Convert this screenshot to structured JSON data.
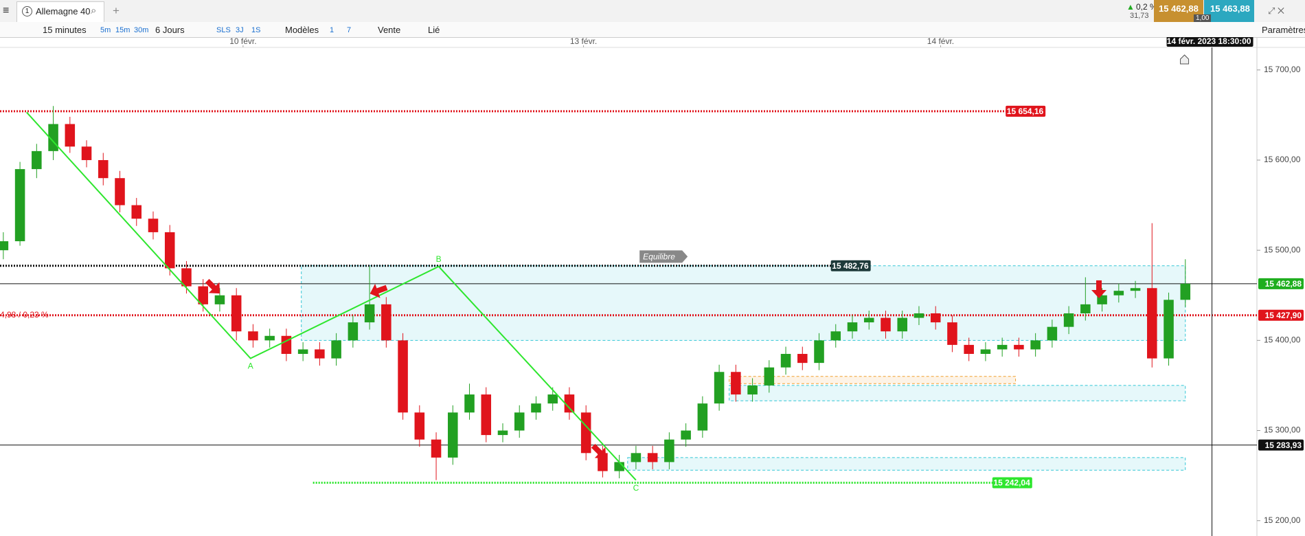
{
  "toolbar": {
    "instrument_number": "1",
    "instrument": "Allemagne 40",
    "change": "0,2 %",
    "change_points": "31,73",
    "bid": "15 462,88",
    "ask": "15 463,88",
    "spread": "1,00",
    "timeframe": "15 minutes",
    "quick_timeframes": [
      "5m",
      "15m",
      "30m"
    ],
    "period": "6 Jours",
    "quick_periods": [
      "SLS",
      "3J",
      "1S"
    ],
    "models": "Modèles",
    "counters": [
      "1",
      "7"
    ],
    "sell": "Vente",
    "linked": "Lié",
    "settings": "Paramètres"
  },
  "chart_data": {
    "type": "candlestick",
    "up_color": "#22a022",
    "down_color": "#e0141c",
    "candles": [
      [
        15500,
        15520,
        15490,
        15510
      ],
      [
        15510,
        15598,
        15505,
        15590
      ],
      [
        15590,
        15618,
        15580,
        15610
      ],
      [
        15610,
        15660,
        15600,
        15640
      ],
      [
        15640,
        15648,
        15608,
        15615
      ],
      [
        15615,
        15622,
        15592,
        15600
      ],
      [
        15600,
        15608,
        15572,
        15580
      ],
      [
        15580,
        15588,
        15542,
        15550
      ],
      [
        15550,
        15558,
        15527,
        15535
      ],
      [
        15535,
        15543,
        15512,
        15520
      ],
      [
        15520,
        15528,
        15472,
        15480
      ],
      [
        15480,
        15488,
        15452,
        15460
      ],
      [
        15460,
        15468,
        15432,
        15440
      ],
      [
        15440,
        15458,
        15432,
        15450
      ],
      [
        15450,
        15458,
        15400,
        15410
      ],
      [
        15410,
        15418,
        15392,
        15400
      ],
      [
        15400,
        15413,
        15392,
        15405
      ],
      [
        15405,
        15413,
        15377,
        15385
      ],
      [
        15385,
        15398,
        15377,
        15390
      ],
      [
        15390,
        15398,
        15372,
        15380
      ],
      [
        15380,
        15408,
        15372,
        15400
      ],
      [
        15400,
        15428,
        15392,
        15420
      ],
      [
        15420,
        15482,
        15412,
        15440
      ],
      [
        15440,
        15448,
        15392,
        15400
      ],
      [
        15400,
        15408,
        15312,
        15320
      ],
      [
        15320,
        15328,
        15282,
        15290
      ],
      [
        15290,
        15298,
        15245,
        15270
      ],
      [
        15270,
        15328,
        15262,
        15320
      ],
      [
        15320,
        15352,
        15312,
        15340
      ],
      [
        15340,
        15348,
        15287,
        15295
      ],
      [
        15295,
        15308,
        15287,
        15300
      ],
      [
        15300,
        15328,
        15292,
        15320
      ],
      [
        15320,
        15338,
        15312,
        15330
      ],
      [
        15330,
        15348,
        15322,
        15340
      ],
      [
        15340,
        15348,
        15312,
        15320
      ],
      [
        15320,
        15328,
        15267,
        15275
      ],
      [
        15275,
        15283,
        15248,
        15255
      ],
      [
        15255,
        15273,
        15247,
        15265
      ],
      [
        15265,
        15283,
        15257,
        15275
      ],
      [
        15275,
        15283,
        15257,
        15265
      ],
      [
        15265,
        15298,
        15257,
        15290
      ],
      [
        15290,
        15308,
        15282,
        15300
      ],
      [
        15300,
        15338,
        15292,
        15330
      ],
      [
        15330,
        15373,
        15322,
        15365
      ],
      [
        15365,
        15373,
        15332,
        15340
      ],
      [
        15340,
        15358,
        15332,
        15350
      ],
      [
        15350,
        15378,
        15342,
        15370
      ],
      [
        15370,
        15393,
        15362,
        15385
      ],
      [
        15385,
        15393,
        15367,
        15375
      ],
      [
        15375,
        15408,
        15367,
        15400
      ],
      [
        15400,
        15418,
        15392,
        15410
      ],
      [
        15410,
        15428,
        15402,
        15420
      ],
      [
        15420,
        15433,
        15412,
        15425
      ],
      [
        15425,
        15433,
        15402,
        15410
      ],
      [
        15410,
        15433,
        15402,
        15425
      ],
      [
        15425,
        15438,
        15417,
        15430
      ],
      [
        15430,
        15438,
        15412,
        15420
      ],
      [
        15420,
        15428,
        15387,
        15395
      ],
      [
        15395,
        15403,
        15377,
        15385
      ],
      [
        15385,
        15398,
        15377,
        15390
      ],
      [
        15390,
        15403,
        15382,
        15395
      ],
      [
        15395,
        15403,
        15382,
        15390
      ],
      [
        15390,
        15408,
        15382,
        15400
      ],
      [
        15400,
        15423,
        15392,
        15415
      ],
      [
        15415,
        15438,
        15407,
        15430
      ],
      [
        15430,
        15470,
        15422,
        15440
      ],
      [
        15440,
        15458,
        15432,
        15450
      ],
      [
        15450,
        15463,
        15442,
        15455
      ],
      [
        15455,
        15466,
        15447,
        15458
      ],
      [
        15458,
        15530,
        15370,
        15380
      ],
      [
        15380,
        15453,
        15372,
        15445
      ],
      [
        15445,
        15490,
        15437,
        15462.88
      ]
    ],
    "xlim": [
      -0.2,
      75.3
    ],
    "xticks": [
      {
        "value": 14.4,
        "label": "10 févr."
      },
      {
        "value": 34.85,
        "label": "13 févr."
      },
      {
        "value": 56.3,
        "label": "14 févr."
      }
    ],
    "crosshair": {
      "value": 72.6,
      "label": "14 févr. 2023 18:30:00"
    },
    "ylim": [
      15183,
      15725
    ],
    "yticks": [
      {
        "value": 15200,
        "label": "15 200,00"
      },
      {
        "value": 15300,
        "label": "15 300,00"
      },
      {
        "value": 15400,
        "label": "15 400,00"
      },
      {
        "value": 15500,
        "label": "15 500,00"
      },
      {
        "value": 15600,
        "label": "15 600,00"
      },
      {
        "value": 15700,
        "label": "15 700,00"
      }
    ],
    "levels": [
      {
        "value": 15654.16,
        "label": "15 654,16",
        "color": "#e0141c",
        "style": "dotted",
        "from": -0.2,
        "to": 62.6,
        "label_side": "inline"
      },
      {
        "value": 15482.76,
        "label": "15 482,76",
        "color": "#111111",
        "style": "dotted",
        "from": -0.2,
        "to": 52.1,
        "label_side": "inline"
      },
      {
        "value": 15462.88,
        "label": "15 462,88",
        "color": "#111111",
        "style": "solid",
        "label_bg": "#1fae1f",
        "label_side": "axis"
      },
      {
        "value": 15427.9,
        "label": "15 427,90",
        "color": "#e0141c",
        "style": "dotted",
        "label_side": "axis",
        "note": "4,98 / 0,23 %"
      },
      {
        "value": 15283.93,
        "label": "15 283,93",
        "color": "#111111",
        "style": "solid",
        "label_side": "axis"
      },
      {
        "value": 15242.04,
        "label": "15 242,04",
        "color": "#2ee62e",
        "style": "dotted",
        "from": 18.6,
        "to": 61.8,
        "label_side": "inline"
      }
    ],
    "zones": [
      {
        "from": 17.9,
        "to": 71,
        "low": 15400,
        "high": 15482.76,
        "color": "#33c6d6"
      },
      {
        "from": 43.6,
        "to": 71,
        "low": 15333,
        "high": 15350,
        "color": "#33c6d6"
      },
      {
        "from": 43.6,
        "to": 60.8,
        "low": 15352,
        "high": 15360,
        "color": "#f0a030"
      },
      {
        "from": 37.5,
        "to": 71,
        "low": 15256,
        "high": 15270,
        "color": "#33c6d6"
      }
    ],
    "pattern": {
      "color": "#2ee62e",
      "points": [
        {
          "x": 1.4,
          "y": 15653
        },
        {
          "x": 14.85,
          "y": 15380,
          "label": "A"
        },
        {
          "x": 26.15,
          "y": 15482,
          "label": "B"
        },
        {
          "x": 38,
          "y": 15245,
          "label": "C"
        }
      ]
    },
    "tag": {
      "label": "Equilibre",
      "x": 38.3,
      "y": 15493
    }
  }
}
